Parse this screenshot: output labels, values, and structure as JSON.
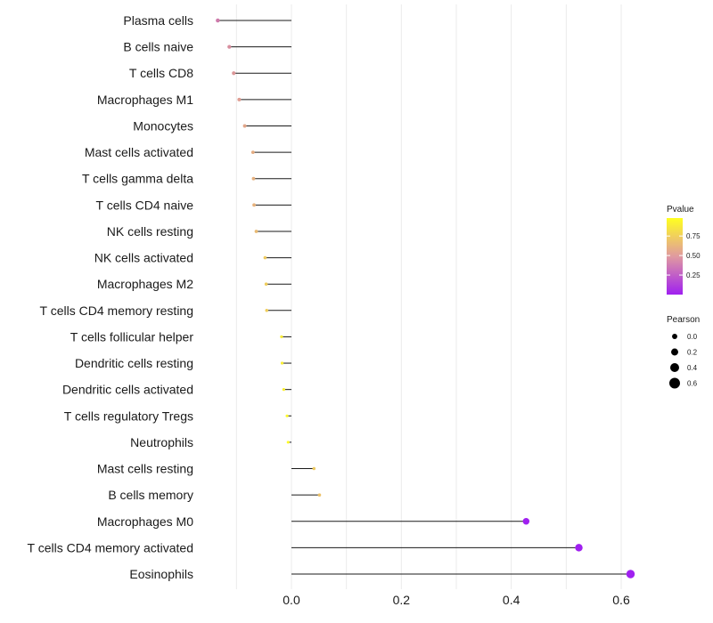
{
  "chart_data": {
    "type": "lollipop",
    "xlabel": "",
    "ylabel": "",
    "xlim": [
      -0.15,
      0.64
    ],
    "xticks": [
      "0.0",
      "0.2",
      "0.4",
      "0.6"
    ],
    "xtick_values": [
      0.0,
      0.2,
      0.4,
      0.6
    ],
    "grid": true,
    "points": [
      {
        "category": "Plasma cells",
        "pearson": -0.134,
        "pvalue": 0.35
      },
      {
        "category": "B cells naive",
        "pearson": -0.113,
        "pvalue": 0.42
      },
      {
        "category": "T cells CD8",
        "pearson": -0.105,
        "pvalue": 0.45
      },
      {
        "category": "Macrophages M1",
        "pearson": -0.095,
        "pvalue": 0.48
      },
      {
        "category": "Monocytes",
        "pearson": -0.085,
        "pvalue": 0.52
      },
      {
        "category": "Mast cells activated",
        "pearson": -0.07,
        "pvalue": 0.55
      },
      {
        "category": "T cells gamma delta",
        "pearson": -0.069,
        "pvalue": 0.57
      },
      {
        "category": "T cells CD4 naive",
        "pearson": -0.068,
        "pvalue": 0.58
      },
      {
        "category": "NK cells resting",
        "pearson": -0.064,
        "pvalue": 0.62
      },
      {
        "category": "NK cells activated",
        "pearson": -0.048,
        "pvalue": 0.7
      },
      {
        "category": "Macrophages M2",
        "pearson": -0.046,
        "pvalue": 0.72
      },
      {
        "category": "T cells CD4 memory resting",
        "pearson": -0.045,
        "pvalue": 0.72
      },
      {
        "category": "T cells follicular helper",
        "pearson": -0.018,
        "pvalue": 0.88
      },
      {
        "category": "Dendritic cells resting",
        "pearson": -0.017,
        "pvalue": 0.89
      },
      {
        "category": "Dendritic cells activated",
        "pearson": -0.014,
        "pvalue": 0.9
      },
      {
        "category": "T cells regulatory  Tregs ",
        "pearson": -0.008,
        "pvalue": 0.95
      },
      {
        "category": "Neutrophils",
        "pearson": -0.006,
        "pvalue": 0.96
      },
      {
        "category": "Mast cells resting",
        "pearson": 0.041,
        "pvalue": 0.7
      },
      {
        "category": "B cells memory",
        "pearson": 0.051,
        "pvalue": 0.66
      },
      {
        "category": "Macrophages M0",
        "pearson": 0.427,
        "pvalue": 0.001
      },
      {
        "category": "T cells CD4 memory activated",
        "pearson": 0.523,
        "pvalue": 0.0005
      },
      {
        "category": "Eosinophils",
        "pearson": 0.617,
        "pvalue": 0.0001
      }
    ],
    "legend_color": {
      "title": "Pvalue",
      "ticks": [
        "0.75",
        "0.50",
        "0.25"
      ],
      "tick_values": [
        0.75,
        0.5,
        0.25
      ],
      "range": [
        0.0,
        0.98
      ],
      "low_color": "#a020f0",
      "mid_color": "#e0a090",
      "high_color": "#ffff20"
    },
    "legend_size": {
      "title": "Pearson",
      "labels": [
        "0.0",
        "0.2",
        "0.4",
        "0.6"
      ],
      "values": [
        0.0,
        0.2,
        0.4,
        0.6
      ]
    },
    "stem_color": "#1a1a1a",
    "grid_color": "#ebebeb"
  }
}
